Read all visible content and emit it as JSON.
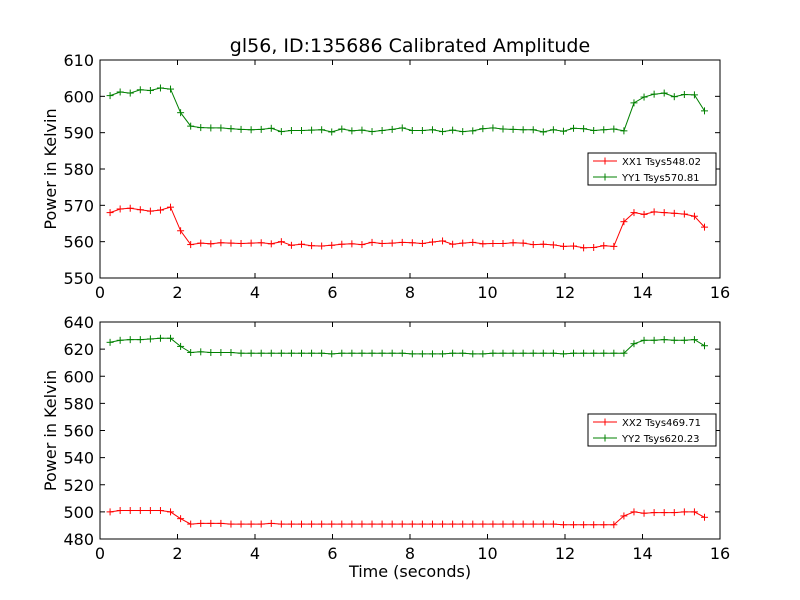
{
  "chart_data": [
    {
      "type": "line",
      "title": "gl56, ID:135686 Calibrated Amplitude",
      "xlabel": "",
      "ylabel": "Power in Kelvin",
      "xlim": [
        0,
        16
      ],
      "ylim": [
        550,
        610
      ],
      "xticks": [
        0,
        2,
        4,
        6,
        8,
        10,
        12,
        14,
        16
      ],
      "yticks": [
        550,
        560,
        570,
        580,
        590,
        600,
        610
      ],
      "legend": "center-right",
      "x": [
        0.26,
        0.52,
        0.78,
        1.04,
        1.3,
        1.56,
        1.82,
        2.08,
        2.34,
        2.6,
        2.86,
        3.12,
        3.38,
        3.64,
        3.9,
        4.16,
        4.42,
        4.68,
        4.94,
        5.2,
        5.46,
        5.72,
        5.98,
        6.24,
        6.5,
        6.76,
        7.02,
        7.28,
        7.54,
        7.8,
        8.06,
        8.32,
        8.58,
        8.84,
        9.1,
        9.36,
        9.62,
        9.88,
        10.14,
        10.4,
        10.66,
        10.92,
        11.18,
        11.44,
        11.7,
        11.96,
        12.22,
        12.48,
        12.74,
        13.0,
        13.26,
        13.52,
        13.78,
        14.04,
        14.3,
        14.56,
        14.82,
        15.08,
        15.34,
        15.6
      ],
      "series": [
        {
          "name": "XX1 Tsys548.02",
          "color": "#ff0000",
          "values": [
            568.0,
            569.0,
            569.2,
            568.8,
            568.4,
            568.7,
            569.5,
            563.0,
            559.2,
            559.6,
            559.4,
            559.7,
            559.6,
            559.5,
            559.6,
            559.7,
            559.4,
            560.0,
            559.0,
            559.3,
            558.9,
            558.8,
            559.0,
            559.3,
            559.4,
            559.2,
            559.8,
            559.5,
            559.6,
            559.8,
            559.7,
            559.5,
            559.9,
            560.2,
            559.3,
            559.6,
            559.8,
            559.4,
            559.5,
            559.5,
            559.7,
            559.6,
            559.2,
            559.3,
            559.1,
            558.7,
            558.8,
            558.3,
            558.4,
            558.9,
            558.7,
            565.5,
            568.0,
            567.5,
            568.2,
            568.0,
            567.8,
            567.6,
            567.0,
            564.0
          ]
        },
        {
          "name": "YY1 Tsys570.81",
          "color": "#008000",
          "values": [
            600.2,
            601.2,
            600.9,
            601.8,
            601.6,
            602.3,
            602.0,
            595.5,
            591.8,
            591.4,
            591.3,
            591.3,
            591.1,
            590.9,
            590.8,
            590.9,
            591.2,
            590.3,
            590.6,
            590.6,
            590.7,
            590.8,
            590.2,
            591.0,
            590.5,
            590.7,
            590.3,
            590.6,
            590.9,
            591.3,
            590.6,
            590.6,
            590.8,
            590.3,
            590.7,
            590.3,
            590.5,
            591.1,
            591.3,
            591.0,
            590.9,
            590.8,
            590.8,
            590.2,
            590.8,
            590.4,
            591.2,
            591.1,
            590.6,
            590.8,
            591.0,
            590.5,
            598.2,
            599.8,
            600.6,
            600.9,
            599.9,
            600.5,
            600.4,
            596.0
          ]
        }
      ]
    },
    {
      "type": "line",
      "title": "",
      "xlabel": "Time (seconds)",
      "ylabel": "Power in Kelvin",
      "xlim": [
        0,
        16
      ],
      "ylim": [
        480,
        640
      ],
      "xticks": [
        0,
        2,
        4,
        6,
        8,
        10,
        12,
        14,
        16
      ],
      "yticks": [
        480,
        500,
        520,
        540,
        560,
        580,
        600,
        620,
        640
      ],
      "legend": "center-right",
      "x": [
        0.26,
        0.52,
        0.78,
        1.04,
        1.3,
        1.56,
        1.82,
        2.08,
        2.34,
        2.6,
        2.86,
        3.12,
        3.38,
        3.64,
        3.9,
        4.16,
        4.42,
        4.68,
        4.94,
        5.2,
        5.46,
        5.72,
        5.98,
        6.24,
        6.5,
        6.76,
        7.02,
        7.28,
        7.54,
        7.8,
        8.06,
        8.32,
        8.58,
        8.84,
        9.1,
        9.36,
        9.62,
        9.88,
        10.14,
        10.4,
        10.66,
        10.92,
        11.18,
        11.44,
        11.7,
        11.96,
        12.22,
        12.48,
        12.74,
        13.0,
        13.26,
        13.52,
        13.78,
        14.04,
        14.3,
        14.56,
        14.82,
        15.08,
        15.34,
        15.6
      ],
      "series": [
        {
          "name": "XX2 Tsys469.71",
          "color": "#ff0000",
          "values": [
            500,
            501,
            501,
            501,
            501,
            501,
            500,
            495,
            491,
            491.5,
            491.5,
            491.5,
            491,
            491,
            491,
            491,
            491.5,
            491,
            491,
            491,
            491,
            491,
            491,
            491,
            491,
            491,
            491,
            491,
            491,
            491,
            491,
            491,
            491,
            491,
            491,
            491,
            491,
            491,
            491,
            491,
            491,
            491,
            491,
            491,
            491,
            490.5,
            490.5,
            490.5,
            490.5,
            490.5,
            490.5,
            497,
            500,
            499,
            499.5,
            499.5,
            499.5,
            500,
            500,
            496
          ]
        },
        {
          "name": "YY2 Tsys620.23",
          "color": "#008000",
          "values": [
            625,
            626.5,
            627,
            627,
            627.5,
            628,
            628,
            622,
            617.5,
            618,
            617.5,
            617.5,
            617.5,
            617,
            617,
            617,
            617,
            617,
            617,
            617,
            617,
            617,
            616.5,
            617,
            617,
            617,
            617,
            617,
            617,
            617,
            616.5,
            616.5,
            616.5,
            616.5,
            617,
            617,
            616.5,
            616.5,
            617,
            617,
            617,
            617,
            617,
            617,
            617,
            616.5,
            617,
            617,
            617,
            617,
            617,
            617,
            624,
            626.5,
            626.5,
            627,
            626.5,
            626.5,
            627,
            622.5
          ]
        }
      ]
    }
  ]
}
